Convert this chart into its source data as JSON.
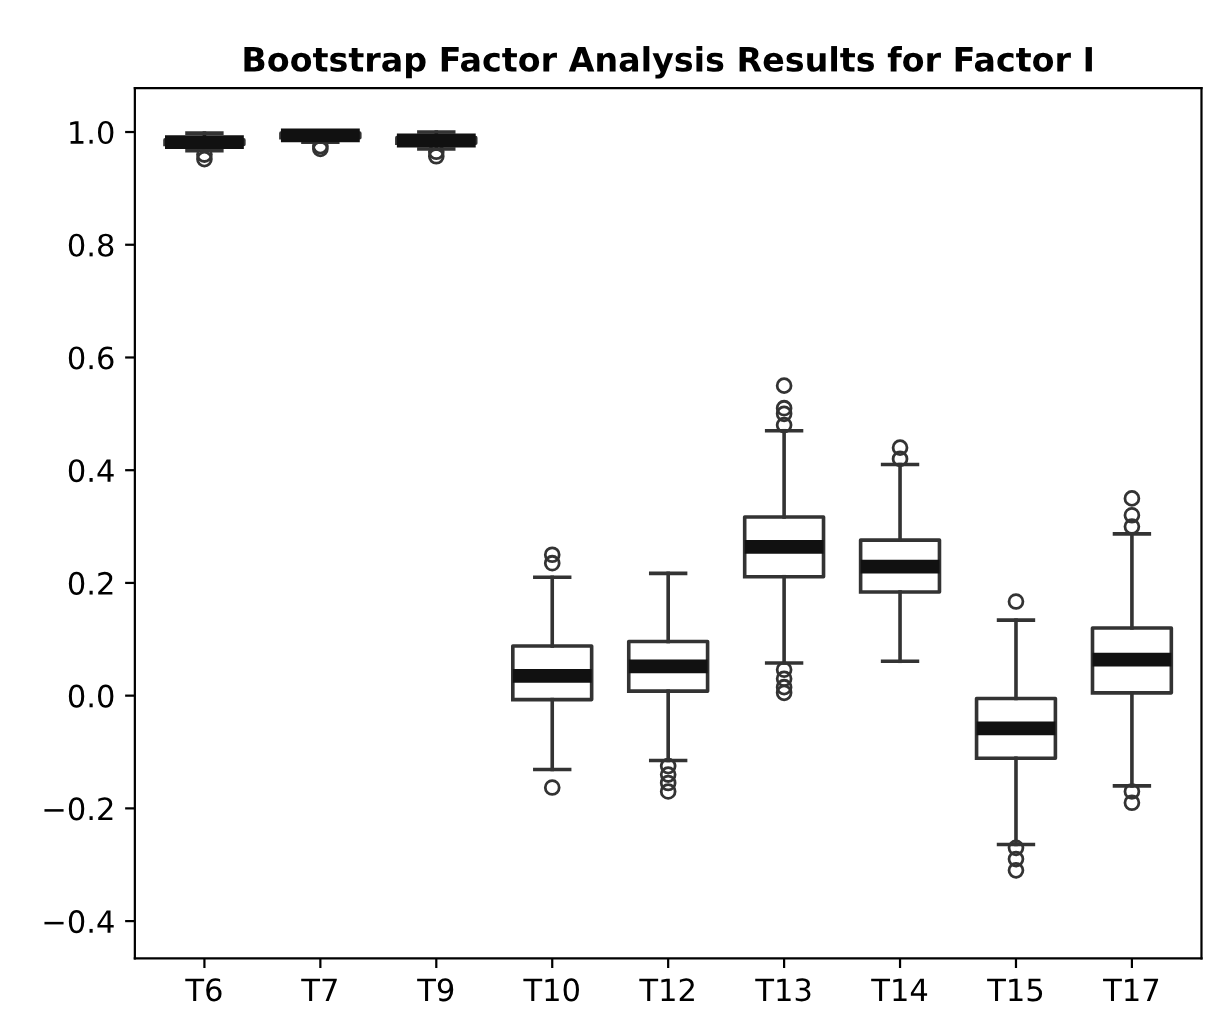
{
  "chart_data": {
    "type": "box",
    "title": "Bootstrap Factor Analysis Results for Factor I",
    "categories": [
      "T6",
      "T7",
      "T9",
      "T10",
      "T12",
      "T13",
      "T14",
      "T15",
      "T17"
    ],
    "boxes": [
      {
        "low": 0.967,
        "q1": 0.978,
        "median": 0.982,
        "q3": 0.986,
        "high": 0.998,
        "outliers": [
          0.96,
          0.952
        ]
      },
      {
        "low": 0.982,
        "q1": 0.99,
        "median": 0.994,
        "q3": 0.998,
        "high": 1.0,
        "outliers": [
          0.975,
          0.97
        ]
      },
      {
        "low": 0.97,
        "q1": 0.98,
        "median": 0.985,
        "q3": 0.99,
        "high": 1.0,
        "outliers": [
          0.965,
          0.957
        ]
      },
      {
        "low": -0.131,
        "q1": -0.007,
        "median": 0.035,
        "q3": 0.088,
        "high": 0.21,
        "outliers": [
          0.235,
          0.25,
          -0.163
        ]
      },
      {
        "low": -0.115,
        "q1": 0.008,
        "median": 0.052,
        "q3": 0.096,
        "high": 0.217,
        "outliers": [
          -0.125,
          -0.14,
          -0.155,
          -0.17
        ]
      },
      {
        "low": 0.058,
        "q1": 0.211,
        "median": 0.264,
        "q3": 0.317,
        "high": 0.47,
        "outliers": [
          0.48,
          0.5,
          0.51,
          0.55,
          0.046,
          0.03,
          0.015,
          0.005
        ]
      },
      {
        "low": 0.061,
        "q1": 0.184,
        "median": 0.229,
        "q3": 0.276,
        "high": 0.41,
        "outliers": [
          0.42,
          0.44
        ]
      },
      {
        "low": -0.264,
        "q1": -0.111,
        "median": -0.058,
        "q3": -0.005,
        "high": 0.134,
        "outliers": [
          0.167,
          -0.27,
          -0.29,
          -0.31
        ]
      },
      {
        "low": -0.16,
        "q1": 0.005,
        "median": 0.064,
        "q3": 0.12,
        "high": 0.287,
        "outliers": [
          0.3,
          0.32,
          0.35,
          -0.17,
          -0.19
        ]
      }
    ],
    "ylim": [
      -0.466,
      1.078
    ],
    "yticks": [
      {
        "value": -0.4,
        "label": "−0.4"
      },
      {
        "value": -0.2,
        "label": "−0.2"
      },
      {
        "value": 0,
        "label": "0.0"
      },
      {
        "value": 0.2,
        "label": "0.2"
      },
      {
        "value": 0.4,
        "label": "0.4"
      },
      {
        "value": 0.6,
        "label": "0.6"
      },
      {
        "value": 0.8,
        "label": "0.8"
      },
      {
        "value": 1.0,
        "label": "1.0"
      }
    ],
    "grid": false
  }
}
